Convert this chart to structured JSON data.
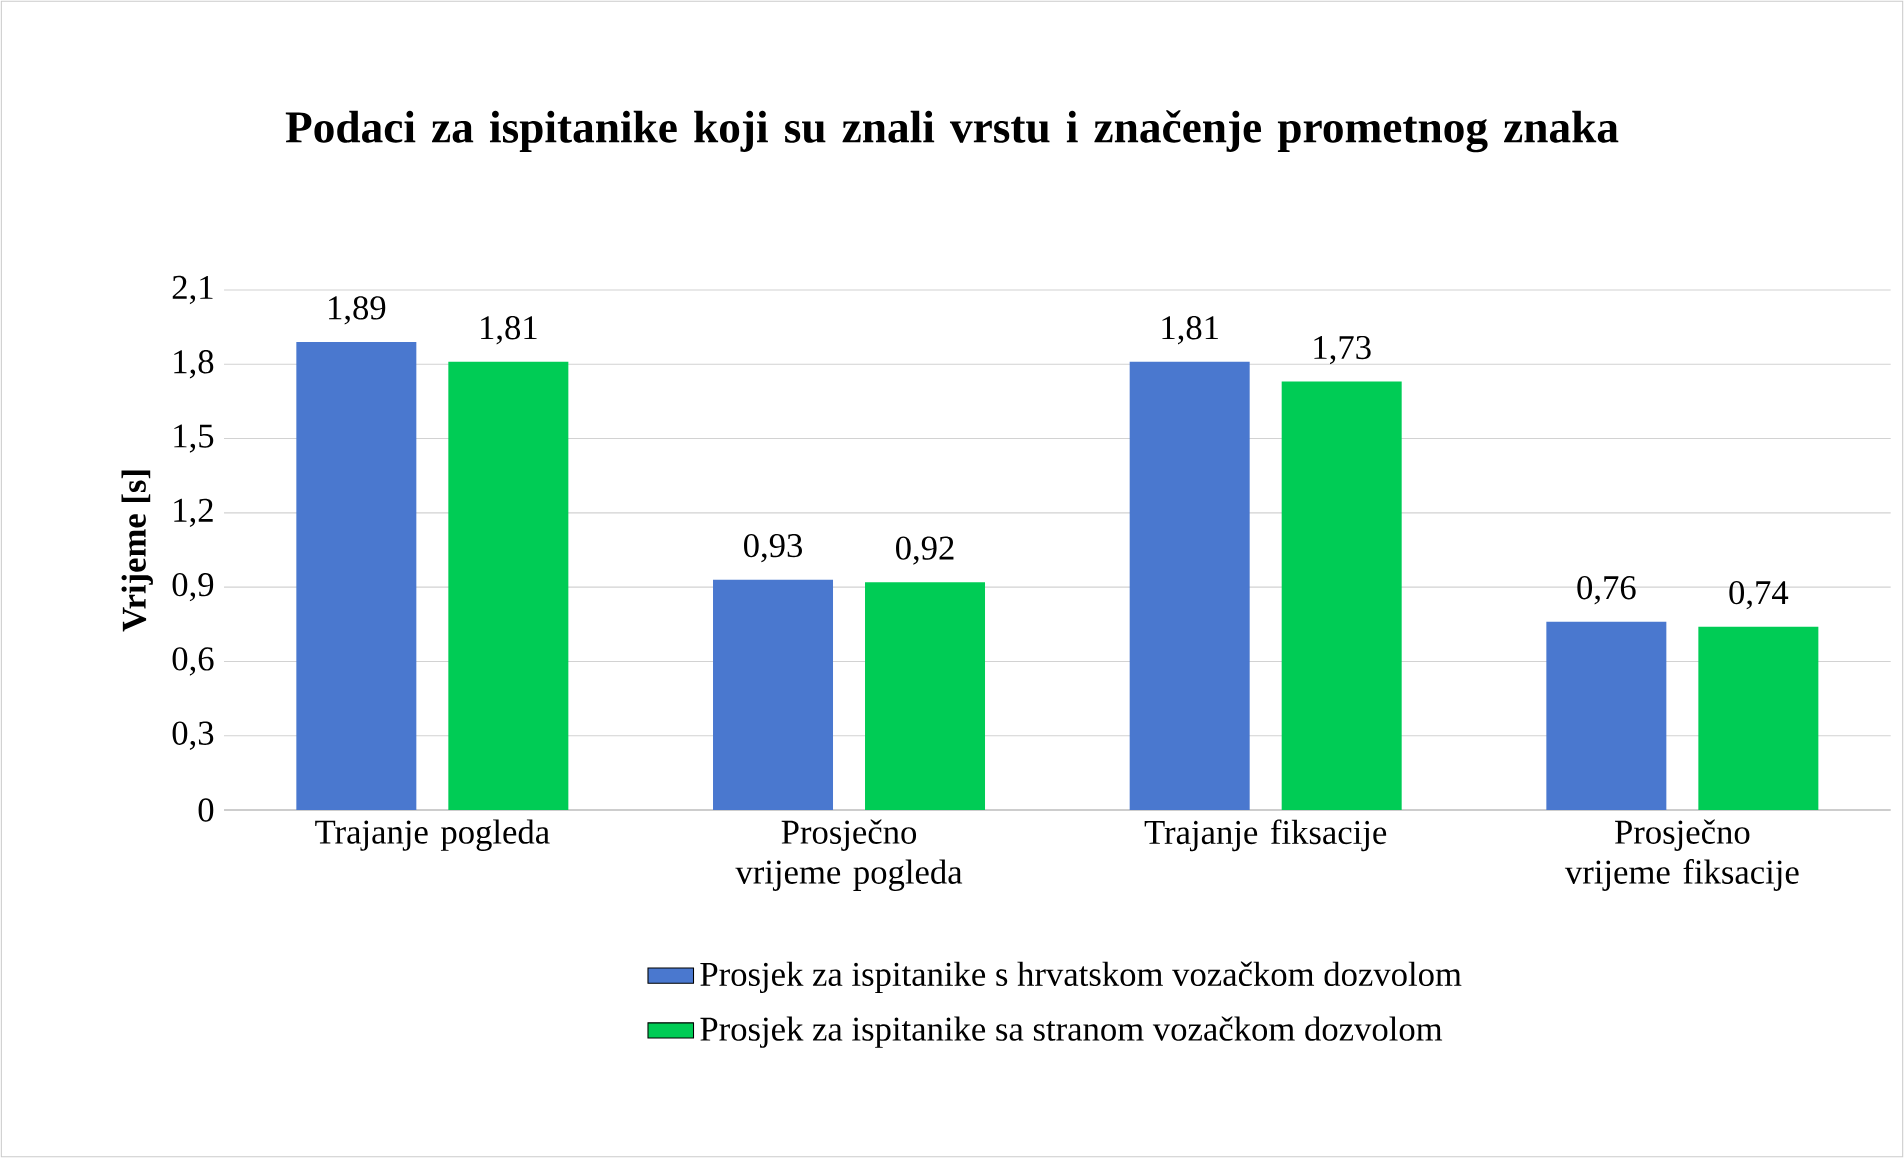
{
  "chart_data": {
    "type": "bar",
    "title": "Podaci za ispitanike koji su znali vrstu i značenje prometnog znaka",
    "ylabel": "Vrijeme [s]",
    "categories": [
      "Trajanje pogleda",
      "Prosječno vrijeme pogleda",
      "Trajanje fiksacije",
      "Prosječno vrijeme fiksacije"
    ],
    "series": [
      {
        "name": "Prosjek za ispitanike s hrvatskom vozačkom dozvolom",
        "color": "#4a78cf",
        "values": [
          1.89,
          0.93,
          1.81,
          0.76
        ],
        "value_labels": [
          "1,89",
          "0,93",
          "1,81",
          "0,76"
        ]
      },
      {
        "name": "Prosjek za ispitanike sa stranom vozačkom dozvolom",
        "color": "#00cc55",
        "values": [
          1.81,
          0.92,
          1.73,
          0.74
        ],
        "value_labels": [
          "1,81",
          "0,92",
          "1,73",
          "0,74"
        ]
      }
    ],
    "ylim": [
      0,
      2.1
    ],
    "yticks": [
      0,
      {
        "value": 0.3,
        "label": "0,3"
      },
      {
        "value": 0.6,
        "label": "0,6"
      },
      {
        "value": 0.9,
        "label": "0,9"
      },
      {
        "value": 1.2,
        "label": "1,2"
      },
      {
        "value": 1.5,
        "label": "1,5"
      },
      {
        "value": 1.8,
        "label": "1,8"
      },
      {
        "value": 2.1,
        "label": "2,1"
      }
    ],
    "grid": "y",
    "legend": "bottom"
  }
}
